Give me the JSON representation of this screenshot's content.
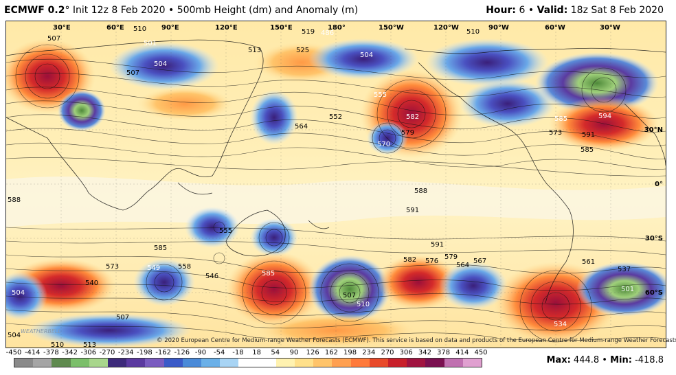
{
  "header": {
    "model": "ECMWF 0.2",
    "deg": "°",
    "init": " Init 12z 8 Feb 2020 • 500mb Height (dm) and Anomaly (m)",
    "hour_label": "Hour:",
    "hour_value": "6",
    "sep": " • ",
    "valid_label": "Valid:",
    "valid_value": "18z Sat 8 Feb 2020"
  },
  "map": {
    "lon_labels": [
      "30°E",
      "60°E",
      "90°E",
      "120°E",
      "150°E",
      "180°",
      "150°W",
      "120°W",
      "90°W",
      "60°W",
      "30°W"
    ],
    "lat_labels": [
      "30°N",
      "0°",
      "30°S",
      "60°S"
    ],
    "height_labels": [
      "507",
      "510",
      "519",
      "525",
      "486",
      "501",
      "504",
      "510",
      "513",
      "504",
      "507",
      "552",
      "555",
      "582",
      "585",
      "573",
      "594",
      "591",
      "585",
      "564",
      "570",
      "579",
      "588",
      "591",
      "588",
      "591",
      "585",
      "573",
      "540",
      "549",
      "558",
      "585",
      "507",
      "510",
      "582",
      "576",
      "579",
      "564",
      "567",
      "561",
      "537",
      "501",
      "504",
      "507",
      "504",
      "510",
      "513",
      "534",
      "546",
      "555"
    ],
    "accent_positive": "#c8102e",
    "accent_negative": "#3a3ab8",
    "icons": [
      "weatherbell-logo"
    ]
  },
  "copyright": "© 2020 European Centre for Medium-range Weather Forecasts (ECMWF). This service is based on data and products of the European Centre for Medium-range Weather Forecasts (ECMWF).",
  "watermark": "WEATHERBELL",
  "colorbar": {
    "ticks": [
      "-450",
      "-414",
      "-378",
      "-342",
      "-306",
      "-270",
      "-234",
      "-198",
      "-162",
      "-126",
      "-90",
      "-54",
      "-18",
      "18",
      "54",
      "90",
      "126",
      "162",
      "198",
      "234",
      "270",
      "306",
      "342",
      "378",
      "414",
      "450"
    ],
    "colors": [
      "#8a8a8a",
      "#a5a5a5",
      "#5f8a4f",
      "#7bbf6a",
      "#a8d68c",
      "#3d2a7a",
      "#5b3aa0",
      "#7a5cc0",
      "#3a5ac8",
      "#4a8ad8",
      "#6ab0e8",
      "#a8d4f4",
      "#ffffff",
      "#ffffff",
      "#fff2b0",
      "#ffe08a",
      "#ffc46a",
      "#ffa050",
      "#ff7a3a",
      "#e84a2a",
      "#c8202a",
      "#a01440",
      "#7a1050",
      "#c070b0",
      "#e0a0d0"
    ]
  },
  "stats": {
    "max_label": "Max:",
    "max_value": "444.8",
    "sep": " • ",
    "min_label": "Min:",
    "min_value": "-418.8"
  }
}
